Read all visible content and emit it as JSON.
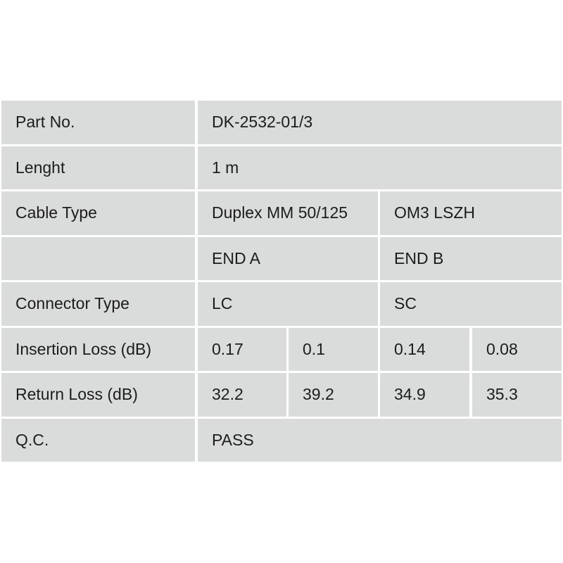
{
  "table": {
    "rows": [
      {
        "label": "Part No.",
        "cells": [
          "DK-2532-01/3"
        ],
        "layout": "full"
      },
      {
        "label": "Lenght",
        "cells": [
          "1 m"
        ],
        "layout": "full"
      },
      {
        "label": "Cable Type",
        "cells": [
          "Duplex MM 50/125",
          "OM3 LSZH"
        ],
        "layout": "half"
      },
      {
        "label": "",
        "cells": [
          "END A",
          "END B"
        ],
        "layout": "half"
      },
      {
        "label": "Connector Type",
        "cells": [
          "LC",
          "SC"
        ],
        "layout": "half"
      },
      {
        "label": "Insertion Loss (dB)",
        "cells": [
          "0.17",
          "0.1",
          "0.14",
          "0.08"
        ],
        "layout": "quarter"
      },
      {
        "label": "Return Loss (dB)",
        "cells": [
          "32.2",
          "39.2",
          "34.9",
          "35.3"
        ],
        "layout": "quarter"
      },
      {
        "label": "Q.C.",
        "cells": [
          "PASS"
        ],
        "layout": "full"
      }
    ]
  }
}
